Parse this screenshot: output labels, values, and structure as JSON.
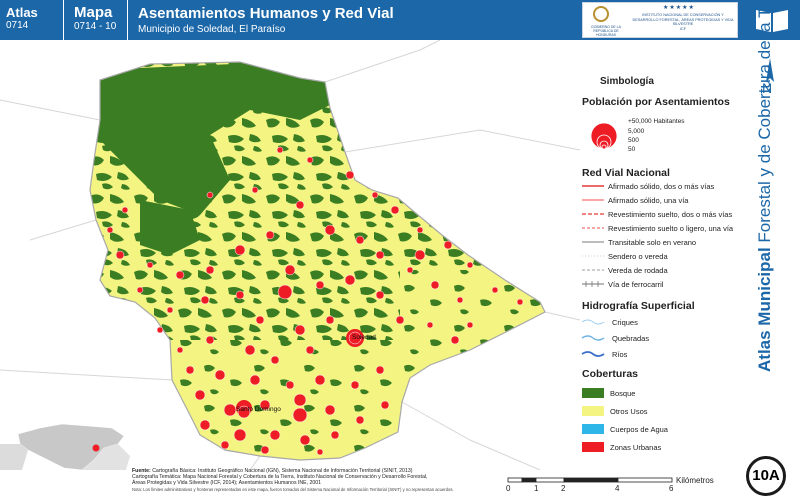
{
  "header": {
    "atlas_label": "Atlas",
    "atlas_code": "0714",
    "mapa_label": "Mapa",
    "mapa_code": "0714 - 10",
    "title": "Asentamientos Humanos y Red Vial",
    "subtitle": "Municipio de Soledad, El Paraíso",
    "logo_left_text": "GOBIERNO DE LA REPÚBLICA DE HONDURAS",
    "logo_right_text": "INSTITUTO NACIONAL DE CONSERVACIÓN Y DESARROLLO FORESTAL, ÁREAS PROTEGIDAS Y VIDA SILVESTRE",
    "logo_right_abbr": "ICF"
  },
  "side_title": {
    "bold": "Atlas Municipal",
    "rest": " Forestal y de Cobertura de la Tierra"
  },
  "north": {
    "label": "N"
  },
  "legend": {
    "title": "Simbología",
    "population": {
      "heading": "Población por Asentamientos",
      "items": [
        "+50,000 Habitantes",
        "5,000",
        "500",
        "50"
      ]
    },
    "roads": {
      "heading": "Red Vial Nacional",
      "items": [
        {
          "label": "Afirmado sólido, dos o más vías",
          "color": "#e53935",
          "style": "solid"
        },
        {
          "label": "Afirmado sólido, una vía",
          "color": "#ef5350",
          "style": "solid"
        },
        {
          "label": "Revestimiento suelto, dos o más vías",
          "color": "#e53935",
          "style": "dash"
        },
        {
          "label": "Revestimiento suelto o ligero, una vía",
          "color": "#ef5350",
          "style": "dash"
        },
        {
          "label": "Transitable solo en verano",
          "color": "#bdbdbd",
          "style": "solid"
        },
        {
          "label": "Sendero o vereda",
          "color": "#cfcfcf",
          "style": "dot"
        },
        {
          "label": "Vereda de rodada",
          "color": "#9e9e9e",
          "style": "dash"
        },
        {
          "label": "Vía de ferrocarril",
          "color": "#757575",
          "style": "rail"
        }
      ]
    },
    "hydro": {
      "heading": "Hidrografía Superficial",
      "items": [
        {
          "label": "Criques",
          "color": "#9ccff0"
        },
        {
          "label": "Quebradas",
          "color": "#6fb4e6"
        },
        {
          "label": "Ríos",
          "color": "#3b6fc9"
        }
      ]
    },
    "coverage": {
      "heading": "Coberturas",
      "items": [
        {
          "label": "Bosque",
          "color": "#3a7d22"
        },
        {
          "label": "Otros Usos",
          "color": "#f4f483"
        },
        {
          "label": "Cuerpos de Agua",
          "color": "#2fb6e8"
        },
        {
          "label": "Zonas Urbanas",
          "color": "#ee1c25"
        }
      ]
    }
  },
  "places": {
    "soledad": "Soledad",
    "santo_domingo": "Santo Domingo"
  },
  "badge": "10A",
  "scale": {
    "ticks": [
      "0",
      "1",
      "2",
      "4",
      "6"
    ],
    "unit": "Kilómetros"
  },
  "sources": {
    "label": "Fuente:",
    "line1": "Cartografía Básica: Instituto Geográfico Nacional (IGN), Sistema Nacional de Información Territorial (SINIT, 2013)",
    "line2": "Cartografía Temática: Mapa Nacional Forestal y Cobertura de la Tierra, Instituto Nacional de Conservación y Desarrollo Forestal,",
    "line3": "Áreas Protegidas y Vida Silvestre (ICF, 2014); Asentamientos Humanos INE, 2001",
    "note": "Nota: Los límites administrativos y fronteras representados en este mapa, fueron tomados del Sistema Nacional de Información Territorial (SINIT) y no representan acuerdos."
  }
}
